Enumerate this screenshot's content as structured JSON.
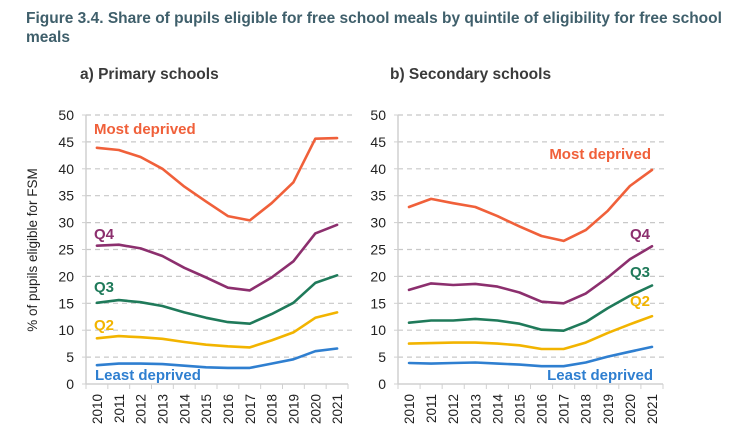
{
  "figure": {
    "title": "Figure 3.4. Share of pupils eligible for free school meals by quintile of eligibility for free school meals"
  },
  "chart_data": [
    {
      "type": "line",
      "title": "a) Primary schools",
      "xlabel": "",
      "ylabel": "% of pupils eligible for FSM",
      "ylim": [
        0,
        50
      ],
      "yticks": [
        0,
        5,
        10,
        15,
        20,
        25,
        30,
        35,
        40,
        45,
        50
      ],
      "grid": true,
      "x": [
        "2010",
        "2011",
        "2012",
        "2013",
        "2014",
        "2015",
        "2016",
        "2017",
        "2018",
        "2019",
        "2020",
        "2021"
      ],
      "series": [
        {
          "name": "Most deprived",
          "color": "#f0603a",
          "values": [
            43.9,
            43.5,
            42.2,
            40.0,
            36.7,
            33.9,
            31.2,
            30.4,
            33.6,
            37.5,
            45.6,
            45.7
          ]
        },
        {
          "name": "Q4",
          "color": "#8c2f6e",
          "values": [
            25.7,
            25.9,
            25.2,
            23.8,
            21.6,
            19.8,
            17.9,
            17.4,
            19.8,
            22.8,
            28.0,
            29.6
          ]
        },
        {
          "name": "Q3",
          "color": "#1f7a5a",
          "values": [
            15.1,
            15.6,
            15.2,
            14.5,
            13.3,
            12.3,
            11.5,
            11.2,
            13.0,
            15.1,
            18.8,
            20.2
          ]
        },
        {
          "name": "Q2",
          "color": "#f2b400",
          "values": [
            8.5,
            8.9,
            8.7,
            8.4,
            7.8,
            7.3,
            7.0,
            6.8,
            8.1,
            9.6,
            12.3,
            13.3
          ]
        },
        {
          "name": "Least deprived",
          "color": "#2f7fd0",
          "values": [
            3.5,
            3.8,
            3.8,
            3.7,
            3.4,
            3.1,
            3.0,
            3.0,
            3.8,
            4.6,
            6.1,
            6.6
          ]
        }
      ]
    },
    {
      "type": "line",
      "title": "b) Secondary schools",
      "xlabel": "",
      "ylabel": "",
      "ylim": [
        0,
        50
      ],
      "yticks": [
        0,
        5,
        10,
        15,
        20,
        25,
        30,
        35,
        40,
        45,
        50
      ],
      "grid": true,
      "x": [
        "2010",
        "2011",
        "2012",
        "2013",
        "2014",
        "2015",
        "2016",
        "2017",
        "2018",
        "2019",
        "2020",
        "2021"
      ],
      "series": [
        {
          "name": "Most deprived",
          "color": "#f0603a",
          "values": [
            32.9,
            34.4,
            33.6,
            32.9,
            31.2,
            29.3,
            27.5,
            26.6,
            28.6,
            32.2,
            36.8,
            39.8
          ]
        },
        {
          "name": "Q4",
          "color": "#8c2f6e",
          "values": [
            17.5,
            18.7,
            18.4,
            18.6,
            18.1,
            17.0,
            15.3,
            15.0,
            16.8,
            19.8,
            23.2,
            25.6
          ]
        },
        {
          "name": "Q3",
          "color": "#1f7a5a",
          "values": [
            11.4,
            11.8,
            11.8,
            12.1,
            11.8,
            11.2,
            10.1,
            9.9,
            11.5,
            14.1,
            16.4,
            18.3
          ]
        },
        {
          "name": "Q2",
          "color": "#f2b400",
          "values": [
            7.5,
            7.6,
            7.7,
            7.7,
            7.5,
            7.2,
            6.5,
            6.5,
            7.7,
            9.5,
            11.1,
            12.6
          ]
        },
        {
          "name": "Least deprived",
          "color": "#2f7fd0",
          "values": [
            3.9,
            3.8,
            3.9,
            4.0,
            3.8,
            3.6,
            3.3,
            3.3,
            4.0,
            5.1,
            6.0,
            6.9
          ]
        }
      ]
    }
  ]
}
